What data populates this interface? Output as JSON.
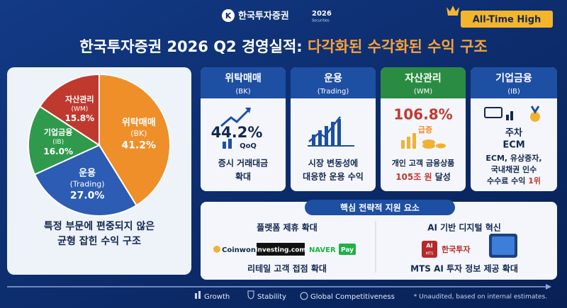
{
  "header": {
    "brand": "한국투자증권",
    "year": "2026",
    "sub": "Securities",
    "badge": "All-Time High",
    "title": "한국투자증권 2026 Q2 경영실적:",
    "title_highlight": "다각화된 수각화된 수익 구조"
  },
  "chart_data": {
    "type": "pie",
    "categories": [
      "위탁매매",
      "운용",
      "기업금융",
      "자산관리"
    ],
    "codes": [
      "(BK)",
      "(Trading)",
      "(IB)",
      "(WM)"
    ],
    "values": [
      41.2,
      27.0,
      16.0,
      15.8
    ],
    "value_labels": [
      "41.2%",
      "27.0%",
      "16.0%",
      "15.8%"
    ],
    "colors": [
      "#ef8f2a",
      "#2c5cb3",
      "#2f9a4b",
      "#c0392f"
    ],
    "summary": [
      "특정 부문에 편중되지 않은",
      "균형 잡힌 수익 구조"
    ]
  },
  "segments": [
    {
      "title": "위탁매매",
      "code": "(BK)",
      "figure": "44.2%",
      "figure_note": "QoQ",
      "lines": [
        "증시 거래대금",
        "확대"
      ]
    },
    {
      "title": "운용",
      "code": "(Trading)",
      "lines": [
        "시장 변동성에",
        "대응한 운용 수익"
      ]
    },
    {
      "title": "자산관리",
      "code": "(WM)",
      "figure": "106.8%",
      "figure_note": "급증",
      "lines": [
        "개인 고객 금융상품"
      ],
      "highlight": "105조 원",
      "tail": "달성"
    },
    {
      "title": "기업금융",
      "code": "(IB)",
      "figure": "주차",
      "figure_note": "ECM",
      "lines": [
        "ECM, 유상증자,",
        "국내채권 인수"
      ],
      "last": "수수료 수익",
      "highlight": "1위"
    }
  ],
  "strategy": {
    "title": "핵심 전략적 지원 요소",
    "left": {
      "heading": "플랫폼 제휴 확대",
      "logos": [
        "Coinwon",
        "Investing.com",
        "NAVER",
        "Pay"
      ],
      "caption": "리테일 고객 접점 확대"
    },
    "right": {
      "heading": "AI 기반 디지털 혁신",
      "logos": [
        "AI",
        "MTS",
        "한국투자"
      ],
      "caption": "MTS AI 투자 정보 제공 확대"
    }
  },
  "footer": {
    "items": [
      "Growth",
      "Stability",
      "Global Competitiveness"
    ],
    "note": "* Unaudited, based on internal estimates."
  }
}
